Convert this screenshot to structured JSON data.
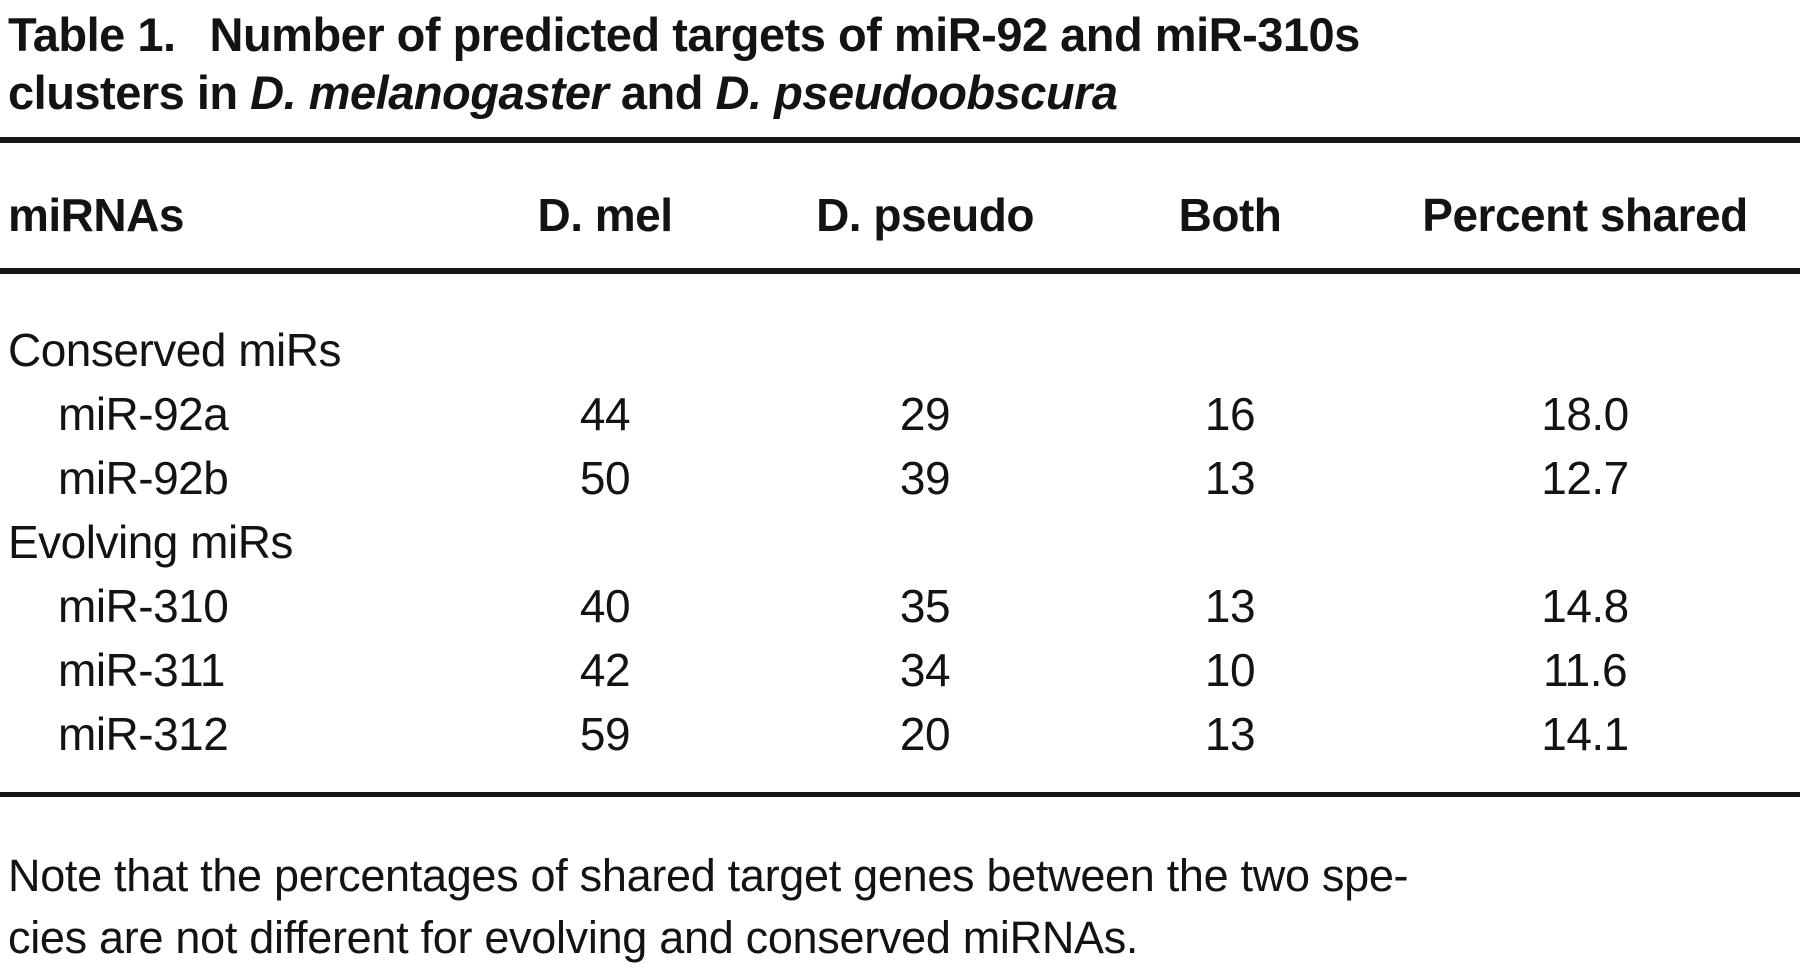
{
  "caption": {
    "label": "Table 1.",
    "line1_rest": "Number of predicted targets of miR-92 and miR-310s",
    "line2_prefix": "clusters in ",
    "species1": "D. melanogaster",
    "conjunction": " and ",
    "species2": "D. pseudoobscura"
  },
  "columns": {
    "mirnas": "miRNAs",
    "d_mel": "D. mel",
    "d_pseudo": "D. pseudo",
    "both": "Both",
    "percent_shared": "Percent shared"
  },
  "groups": [
    {
      "label": "Conserved miRs",
      "rows": [
        {
          "name": "miR-92a",
          "d_mel": "44",
          "d_pseudo": "29",
          "both": "16",
          "percent_shared": "18.0"
        },
        {
          "name": "miR-92b",
          "d_mel": "50",
          "d_pseudo": "39",
          "both": "13",
          "percent_shared": "12.7"
        }
      ]
    },
    {
      "label": "Evolving miRs",
      "rows": [
        {
          "name": "miR-310",
          "d_mel": "40",
          "d_pseudo": "35",
          "both": "13",
          "percent_shared": "14.8"
        },
        {
          "name": "miR-311",
          "d_mel": "42",
          "d_pseudo": "34",
          "both": "10",
          "percent_shared": "11.6"
        },
        {
          "name": "miR-312",
          "d_mel": "59",
          "d_pseudo": "20",
          "both": "13",
          "percent_shared": "14.1"
        }
      ]
    }
  ],
  "footnote": {
    "line1": "Note that the percentages of shared target genes between the two spe-",
    "line2": "cies are not different for evolving and conserved miRNAs."
  },
  "colors": {
    "text": "#131313",
    "rule": "#161616",
    "background": "#ffffff"
  }
}
